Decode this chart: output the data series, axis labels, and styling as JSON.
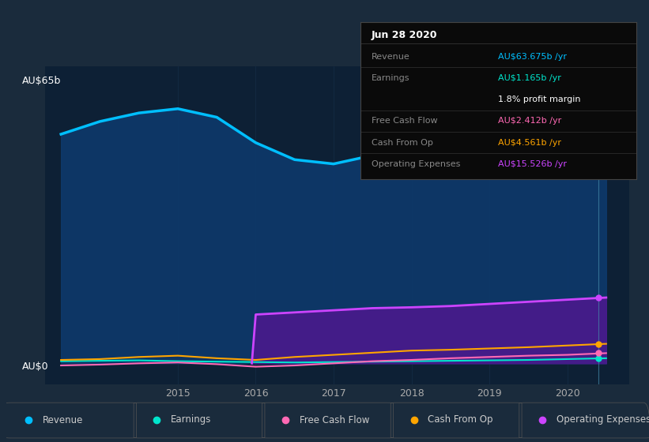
{
  "fig_bg_color": "#1a2b3c",
  "plot_bg_color": "#0d2035",
  "years": [
    2013.5,
    2014.0,
    2014.5,
    2015.0,
    2015.5,
    2016.0,
    2016.5,
    2017.0,
    2017.5,
    2018.0,
    2018.5,
    2019.0,
    2019.5,
    2020.0,
    2020.5
  ],
  "revenue": [
    54,
    57,
    59,
    60,
    58,
    52,
    48,
    47,
    49,
    51,
    53,
    56,
    59,
    62,
    65
  ],
  "earnings": [
    0.5,
    0.6,
    0.7,
    0.5,
    0.4,
    0.3,
    0.2,
    0.3,
    0.4,
    0.5,
    0.6,
    0.7,
    0.8,
    1.0,
    1.2
  ],
  "free_cash_flow": [
    -0.5,
    -0.3,
    0.0,
    0.2,
    -0.2,
    -0.8,
    -0.5,
    0.0,
    0.5,
    0.8,
    1.2,
    1.5,
    1.8,
    2.0,
    2.4
  ],
  "cash_from_op": [
    0.8,
    1.0,
    1.5,
    1.8,
    1.2,
    0.8,
    1.5,
    2.0,
    2.5,
    3.0,
    3.2,
    3.5,
    3.8,
    4.2,
    4.6
  ],
  "operating_expenses": [
    0.0,
    0.0,
    0.0,
    0.0,
    0.0,
    11.5,
    12.0,
    12.5,
    13.0,
    13.2,
    13.5,
    14.0,
    14.5,
    15.0,
    15.5
  ],
  "revenue_color": "#00bfff",
  "earnings_color": "#00e5cc",
  "free_cash_flow_color": "#ff69b4",
  "cash_from_op_color": "#ffa500",
  "operating_expenses_color": "#cc44ff",
  "revenue_fill_color": "#0d3a6e",
  "op_exp_fill_color": "#4a1a8c",
  "x_ticks": [
    2015,
    2016,
    2017,
    2018,
    2019,
    2020
  ],
  "x_tick_labels": [
    "2015",
    "2016",
    "2017",
    "2018",
    "2019",
    "2020"
  ],
  "y_label_top": "AU$65b",
  "y_label_zero": "AU$0",
  "grid_color": "#1e3a5a",
  "tooltip_title": "Jun 28 2020",
  "tooltip_rows": [
    {
      "label": "Revenue",
      "value": "AU$63.675b /yr",
      "value_color": "#00bfff",
      "label_color": "#888888"
    },
    {
      "label": "Earnings",
      "value": "AU$1.165b /yr",
      "value_color": "#00e5cc",
      "label_color": "#888888"
    },
    {
      "label": "",
      "value": "1.8% profit margin",
      "value_color": "#ffffff",
      "label_color": "#888888"
    },
    {
      "label": "Free Cash Flow",
      "value": "AU$2.412b /yr",
      "value_color": "#ff69b4",
      "label_color": "#888888"
    },
    {
      "label": "Cash From Op",
      "value": "AU$4.561b /yr",
      "value_color": "#ffa500",
      "label_color": "#888888"
    },
    {
      "label": "Operating Expenses",
      "value": "AU$15.526b /yr",
      "value_color": "#cc44ff",
      "label_color": "#888888"
    }
  ],
  "legend_items": [
    {
      "label": "Revenue",
      "color": "#00bfff"
    },
    {
      "label": "Earnings",
      "color": "#00e5cc"
    },
    {
      "label": "Free Cash Flow",
      "color": "#ff69b4"
    },
    {
      "label": "Cash From Op",
      "color": "#ffa500"
    },
    {
      "label": "Operating Expenses",
      "color": "#cc44ff"
    }
  ],
  "vline_x": 2020.4,
  "ylim": [
    -5,
    70
  ],
  "xlim": [
    2013.3,
    2020.8
  ]
}
